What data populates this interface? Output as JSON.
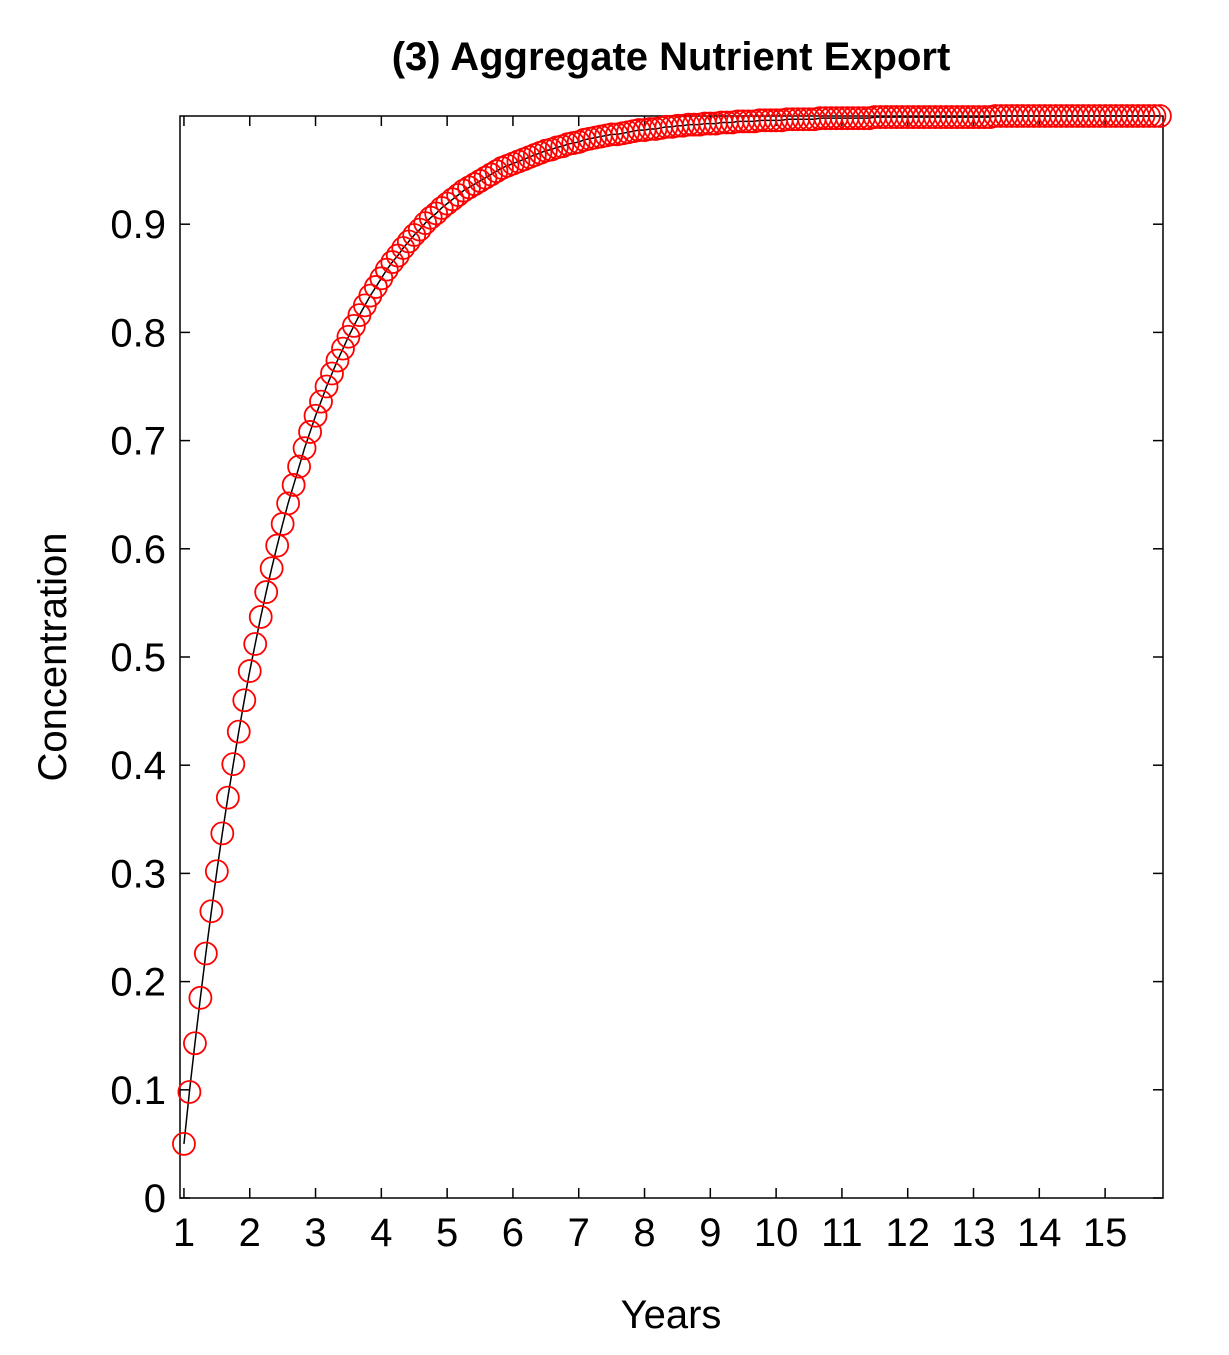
{
  "chart_data": {
    "type": "line",
    "title": "(3) Aggregate Nutrient Export",
    "xlabel": "Years",
    "ylabel": "Concentration",
    "x": [
      1,
      1.083,
      1.167,
      1.25,
      1.333,
      1.417,
      1.5,
      1.583,
      1.667,
      1.75,
      1.833,
      1.917,
      2,
      2.083,
      2.167,
      2.25,
      2.333,
      2.417,
      2.5,
      2.583,
      2.667,
      2.75,
      2.833,
      2.917,
      3,
      3.083,
      3.167,
      3.25,
      3.333,
      3.417,
      3.5,
      3.583,
      3.667,
      3.75,
      3.833,
      3.917,
      4,
      4.083,
      4.167,
      4.25,
      4.333,
      4.417,
      4.5,
      4.583,
      4.667,
      4.75,
      4.833,
      4.917,
      5,
      5.083,
      5.167,
      5.25,
      5.333,
      5.417,
      5.5,
      5.583,
      5.667,
      5.75,
      5.833,
      5.917,
      6,
      6.083,
      6.167,
      6.25,
      6.333,
      6.417,
      6.5,
      6.583,
      6.667,
      6.75,
      6.833,
      6.917,
      7,
      7.083,
      7.167,
      7.25,
      7.333,
      7.417,
      7.5,
      7.583,
      7.667,
      7.75,
      7.833,
      7.917,
      8,
      8.083,
      8.167,
      8.25,
      8.333,
      8.417,
      8.5,
      8.583,
      8.667,
      8.75,
      8.833,
      8.917,
      9,
      9.083,
      9.167,
      9.25,
      9.333,
      9.417,
      9.5,
      9.583,
      9.667,
      9.75,
      9.833,
      9.917,
      10,
      10.083,
      10.167,
      10.25,
      10.333,
      10.417,
      10.5,
      10.583,
      10.667,
      10.75,
      10.833,
      10.917,
      11,
      11.083,
      11.167,
      11.25,
      11.333,
      11.417,
      11.5,
      11.583,
      11.667,
      11.75,
      11.833,
      11.917,
      12,
      12.083,
      12.167,
      12.25,
      12.333,
      12.417,
      12.5,
      12.583,
      12.667,
      12.75,
      12.833,
      12.917,
      13,
      13.083,
      13.167,
      13.25,
      13.333,
      13.417,
      13.5,
      13.583,
      13.667,
      13.75,
      13.833,
      13.917,
      14,
      14.083,
      14.167,
      14.25,
      14.333,
      14.417,
      14.5,
      14.583,
      14.667,
      14.75,
      14.833,
      14.917,
      15,
      15.083,
      15.167,
      15.25,
      15.333,
      15.417,
      15.5,
      15.583,
      15.667,
      15.75,
      15.833
    ],
    "series": [
      {
        "line_color": "#000000",
        "marker_color": "#ff0000",
        "values": [
          0.05,
          0.098,
          0.143,
          0.185,
          0.226,
          0.265,
          0.302,
          0.337,
          0.37,
          0.401,
          0.431,
          0.46,
          0.487,
          0.512,
          0.537,
          0.56,
          0.582,
          0.603,
          0.623,
          0.642,
          0.659,
          0.676,
          0.693,
          0.708,
          0.723,
          0.736,
          0.75,
          0.762,
          0.774,
          0.785,
          0.796,
          0.806,
          0.816,
          0.825,
          0.834,
          0.842,
          0.85,
          0.858,
          0.865,
          0.871,
          0.878,
          0.884,
          0.89,
          0.895,
          0.901,
          0.906,
          0.91,
          0.915,
          0.919,
          0.923,
          0.927,
          0.931,
          0.934,
          0.937,
          0.94,
          0.943,
          0.946,
          0.949,
          0.952,
          0.954,
          0.956,
          0.958,
          0.96,
          0.962,
          0.964,
          0.966,
          0.968,
          0.969,
          0.971,
          0.972,
          0.974,
          0.975,
          0.976,
          0.978,
          0.979,
          0.98,
          0.981,
          0.982,
          0.983,
          0.983,
          0.984,
          0.985,
          0.986,
          0.987,
          0.987,
          0.988,
          0.988,
          0.989,
          0.99,
          0.99,
          0.991,
          0.991,
          0.992,
          0.992,
          0.992,
          0.993,
          0.993,
          0.993,
          0.994,
          0.994,
          0.994,
          0.995,
          0.995,
          0.995,
          0.995,
          0.996,
          0.996,
          0.996,
          0.996,
          0.996,
          0.997,
          0.997,
          0.997,
          0.997,
          0.997,
          0.997,
          0.998,
          0.998,
          0.998,
          0.998,
          0.998,
          0.998,
          0.998,
          0.998,
          0.998,
          0.998,
          0.999,
          0.999,
          0.999,
          0.999,
          0.999,
          0.999,
          0.999,
          0.999,
          0.999,
          0.999,
          0.999,
          0.999,
          0.999,
          0.999,
          0.999,
          0.999,
          0.999,
          0.999,
          0.999,
          0.999,
          0.999,
          0.999,
          1,
          1,
          1,
          1,
          1,
          1,
          1,
          1,
          1,
          1,
          1,
          1,
          1,
          1,
          1,
          1,
          1,
          1,
          1,
          1,
          1,
          1,
          1,
          1,
          1,
          1,
          1,
          1,
          1,
          1,
          1
        ]
      }
    ],
    "xlim": [
      0.94,
      15.88
    ],
    "xticks": [
      1,
      2,
      3,
      4,
      5,
      6,
      7,
      8,
      9,
      10,
      11,
      12,
      13,
      14,
      15
    ],
    "ylim": [
      0,
      1
    ],
    "yticks": [
      0,
      0.1,
      0.2,
      0.3,
      0.4,
      0.5,
      0.6,
      0.7,
      0.8,
      0.9
    ]
  }
}
